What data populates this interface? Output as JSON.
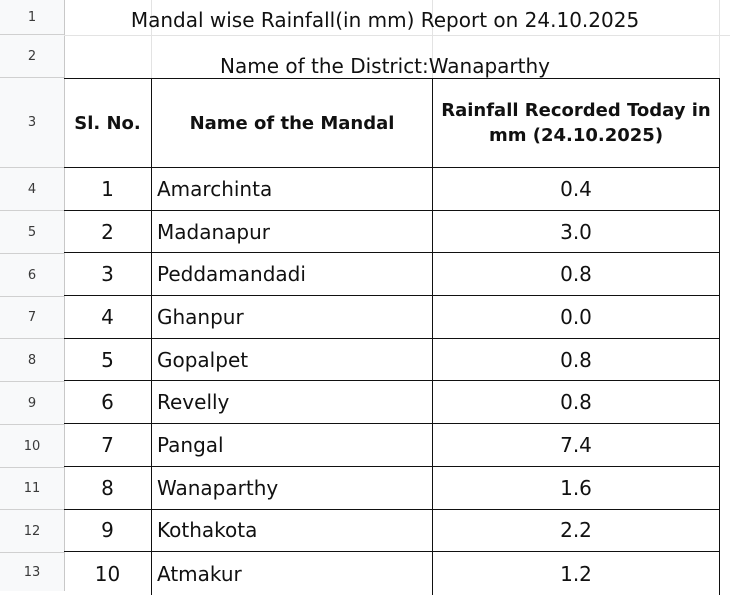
{
  "sheet": {
    "row_numbers": [
      "1",
      "2",
      "3",
      "4",
      "5",
      "6",
      "7",
      "8",
      "9",
      "10",
      "11",
      "12",
      "13"
    ]
  },
  "report": {
    "title": "Mandal wise Rainfall(in mm) Report on 24.10.2025",
    "district_line": "Name of the District:Wanaparthy"
  },
  "table": {
    "headers": {
      "sl_no": "Sl. No.",
      "mandal": "Name of the Mandal",
      "rainfall": "Rainfall Recorded Today in mm (24.10.2025)"
    },
    "rows": [
      {
        "sl": "1",
        "mandal": "Amarchinta",
        "rainfall": "0.4"
      },
      {
        "sl": "2",
        "mandal": "Madanapur",
        "rainfall": "3.0"
      },
      {
        "sl": "3",
        "mandal": "Peddamandadi",
        "rainfall": "0.8"
      },
      {
        "sl": "4",
        "mandal": "Ghanpur",
        "rainfall": "0.0"
      },
      {
        "sl": "5",
        "mandal": "Gopalpet",
        "rainfall": "0.8"
      },
      {
        "sl": "6",
        "mandal": "Revelly",
        "rainfall": "0.8"
      },
      {
        "sl": "7",
        "mandal": "Pangal",
        "rainfall": "7.4"
      },
      {
        "sl": "8",
        "mandal": "Wanaparthy",
        "rainfall": "1.6"
      },
      {
        "sl": "9",
        "mandal": "Kothakota",
        "rainfall": "2.2"
      },
      {
        "sl": "10",
        "mandal": "Atmakur",
        "rainfall": "1.2"
      }
    ]
  }
}
